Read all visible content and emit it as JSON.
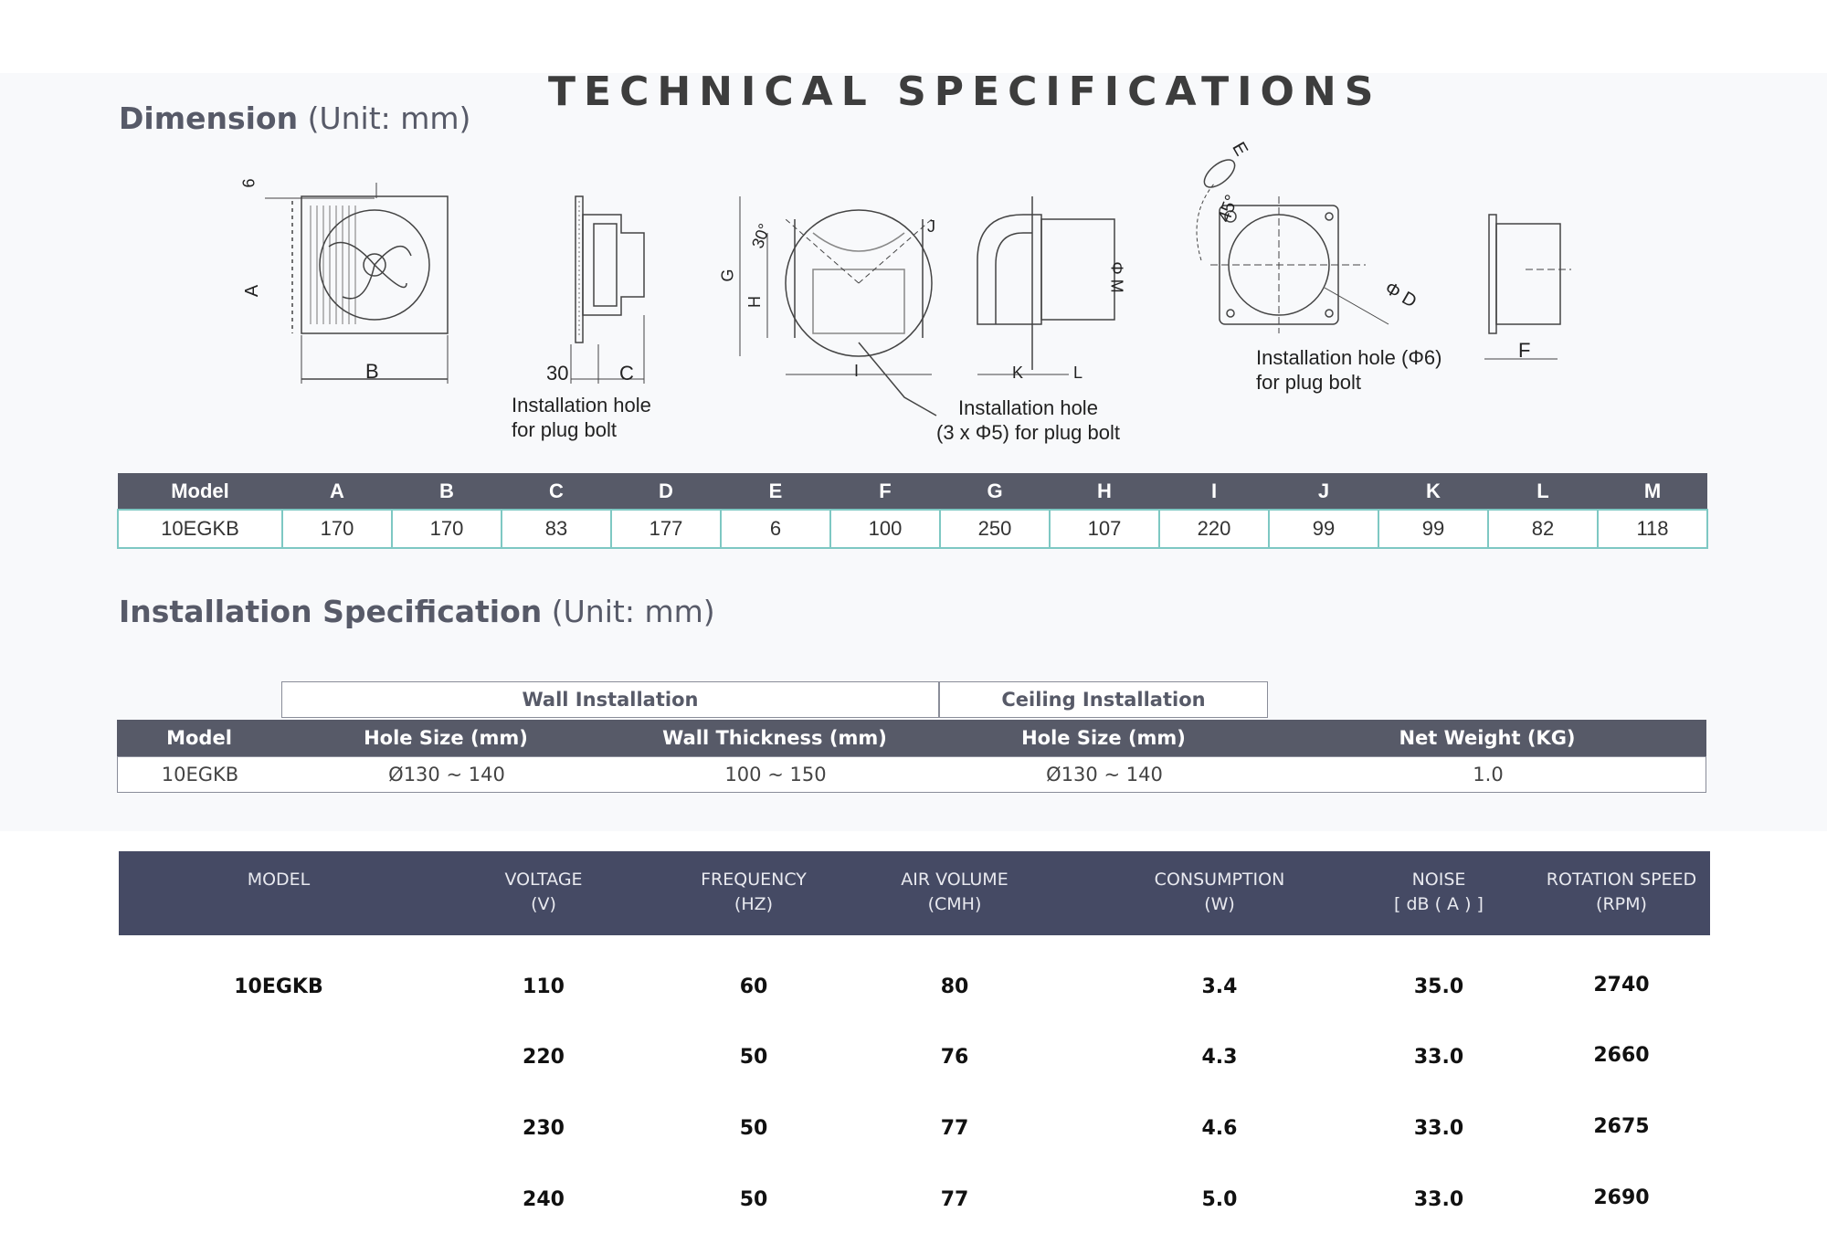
{
  "title": "TECHNICAL SPECIFICATIONS",
  "dimension": {
    "heading": "Dimension",
    "unit": "(Unit: mm)",
    "captions": {
      "side_hole": [
        "Installation hole",
        "for plug bolt"
      ],
      "duct_hole": [
        "Installation hole",
        "(3 x Φ5) for plug bolt"
      ],
      "back_hole": [
        "Installation hole (Φ6)",
        "for plug bolt"
      ]
    },
    "drawing_labels": {
      "a": "A",
      "b": "B",
      "c": "C",
      "six": "6",
      "thirty": "30",
      "g": "G",
      "h": "H",
      "i": "I",
      "j": "J",
      "thirty_deg": "30°",
      "k": "K",
      "l": "L",
      "m": "Φ M",
      "e": "E",
      "fortyfive": "45°",
      "d": "Φ D",
      "f": "F"
    },
    "table": {
      "headers": [
        "Model",
        "A",
        "B",
        "C",
        "D",
        "E",
        "F",
        "G",
        "H",
        "I",
        "J",
        "K",
        "L",
        "M"
      ],
      "row": [
        "10EGKB",
        "170",
        "170",
        "83",
        "177",
        "6",
        "100",
        "250",
        "107",
        "220",
        "99",
        "99",
        "82",
        "118"
      ]
    }
  },
  "installation": {
    "heading": "Installation Specification",
    "unit": "(Unit: mm)",
    "groups": {
      "wall": "Wall Installation",
      "ceiling": "Ceiling Installation"
    },
    "headers": [
      "Model",
      "Hole Size (mm)",
      "Wall Thickness (mm)",
      "Hole Size (mm)",
      "Net Weight (KG)"
    ],
    "row": [
      "10EGKB",
      "Ø130 ~ 140",
      "100 ~ 150",
      "Ø130 ~ 140",
      "1.0"
    ]
  },
  "performance": {
    "headers": [
      [
        "MODEL",
        ""
      ],
      [
        "VOLTAGE",
        "(V)"
      ],
      [
        "FREQUENCY",
        "(HZ)"
      ],
      [
        "AIR VOLUME",
        "(CMH)"
      ],
      [
        "CONSUMPTION",
        "(W)"
      ],
      [
        "NOISE",
        "[ dB ( A ) ]"
      ],
      [
        "ROTATION SPEED",
        "(RPM)"
      ]
    ],
    "model": "10EGKB",
    "rows": [
      [
        "110",
        "60",
        "80",
        "3.4",
        "35.0",
        "2740"
      ],
      [
        "220",
        "50",
        "76",
        "4.3",
        "33.0",
        "2660"
      ],
      [
        "230",
        "50",
        "77",
        "4.6",
        "33.0",
        "2675"
      ],
      [
        "240",
        "50",
        "77",
        "5.0",
        "33.0",
        "2690"
      ]
    ]
  },
  "colors": {
    "header_bg": "#575a68",
    "perf_header_bg": "#454a64",
    "dim_border": "#7ec8c3"
  }
}
